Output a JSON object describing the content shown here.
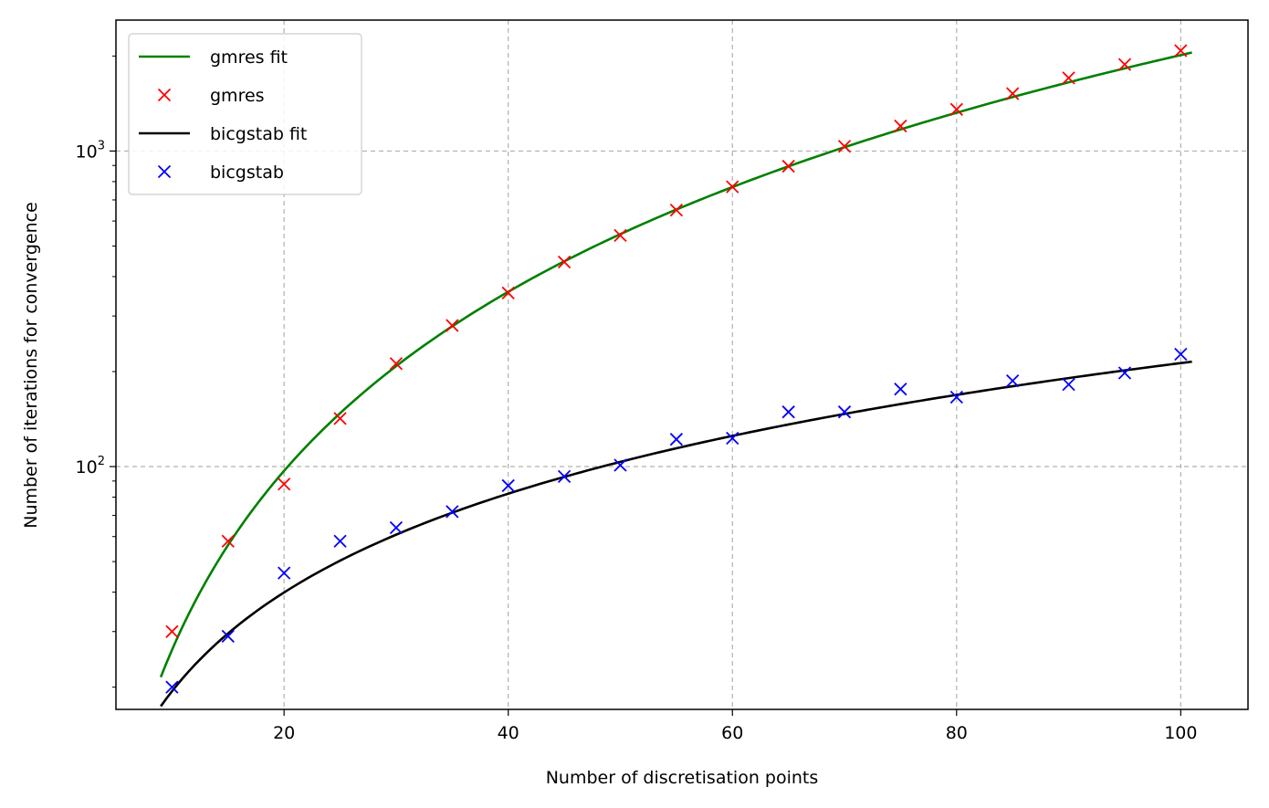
{
  "chart_data": {
    "type": "scatter",
    "xlabel": "Number of discretisation points",
    "ylabel": "Number of iterations for convergence",
    "xlim": [
      5,
      106
    ],
    "ylim": [
      17,
      2600
    ],
    "yscale": "log",
    "grid": true,
    "legend_placement": "top-left",
    "x_ticks": [
      {
        "value": 20,
        "label": "20"
      },
      {
        "value": 40,
        "label": "40"
      },
      {
        "value": 60,
        "label": "60"
      },
      {
        "value": 80,
        "label": "80"
      },
      {
        "value": 100,
        "label": "100"
      }
    ],
    "y_ticks": [
      {
        "value": 100,
        "base": "10",
        "exp": "2"
      },
      {
        "value": 1000,
        "base": "10",
        "exp": "3"
      }
    ],
    "fits": [
      {
        "name": "gmres fit",
        "color": "#008000",
        "coef": 0.342,
        "power": 1.885,
        "x_range": [
          9,
          101
        ]
      },
      {
        "name": "bicgstab fit",
        "color": "#000000",
        "coef": 1.77,
        "power": 1.04,
        "x_range": [
          9,
          101
        ]
      }
    ],
    "series": [
      {
        "name": "gmres",
        "color": "#ff0000",
        "marker": "x",
        "x": [
          10,
          15,
          20,
          25,
          30,
          35,
          40,
          45,
          50,
          55,
          60,
          65,
          70,
          75,
          80,
          85,
          90,
          95,
          100
        ],
        "y": [
          30,
          58,
          88,
          142,
          212,
          280,
          355,
          445,
          540,
          650,
          770,
          895,
          1035,
          1200,
          1355,
          1520,
          1705,
          1880,
          2080
        ]
      },
      {
        "name": "bicgstab",
        "color": "#0000ff",
        "marker": "x",
        "x": [
          10,
          15,
          20,
          25,
          30,
          35,
          40,
          45,
          50,
          55,
          60,
          65,
          70,
          75,
          80,
          85,
          90,
          95,
          100
        ],
        "y": [
          20,
          29,
          46,
          58,
          64,
          72,
          87,
          93,
          101,
          122,
          123,
          149,
          149,
          176,
          166,
          187,
          182,
          198,
          227
        ]
      }
    ],
    "legend": [
      {
        "label": "gmres fit",
        "kind": "line",
        "color": "#008000"
      },
      {
        "label": "gmres",
        "kind": "marker",
        "color": "#ff0000"
      },
      {
        "label": "bicgstab fit",
        "kind": "line",
        "color": "#000000"
      },
      {
        "label": "bicgstab",
        "kind": "marker",
        "color": "#0000ff"
      }
    ]
  }
}
